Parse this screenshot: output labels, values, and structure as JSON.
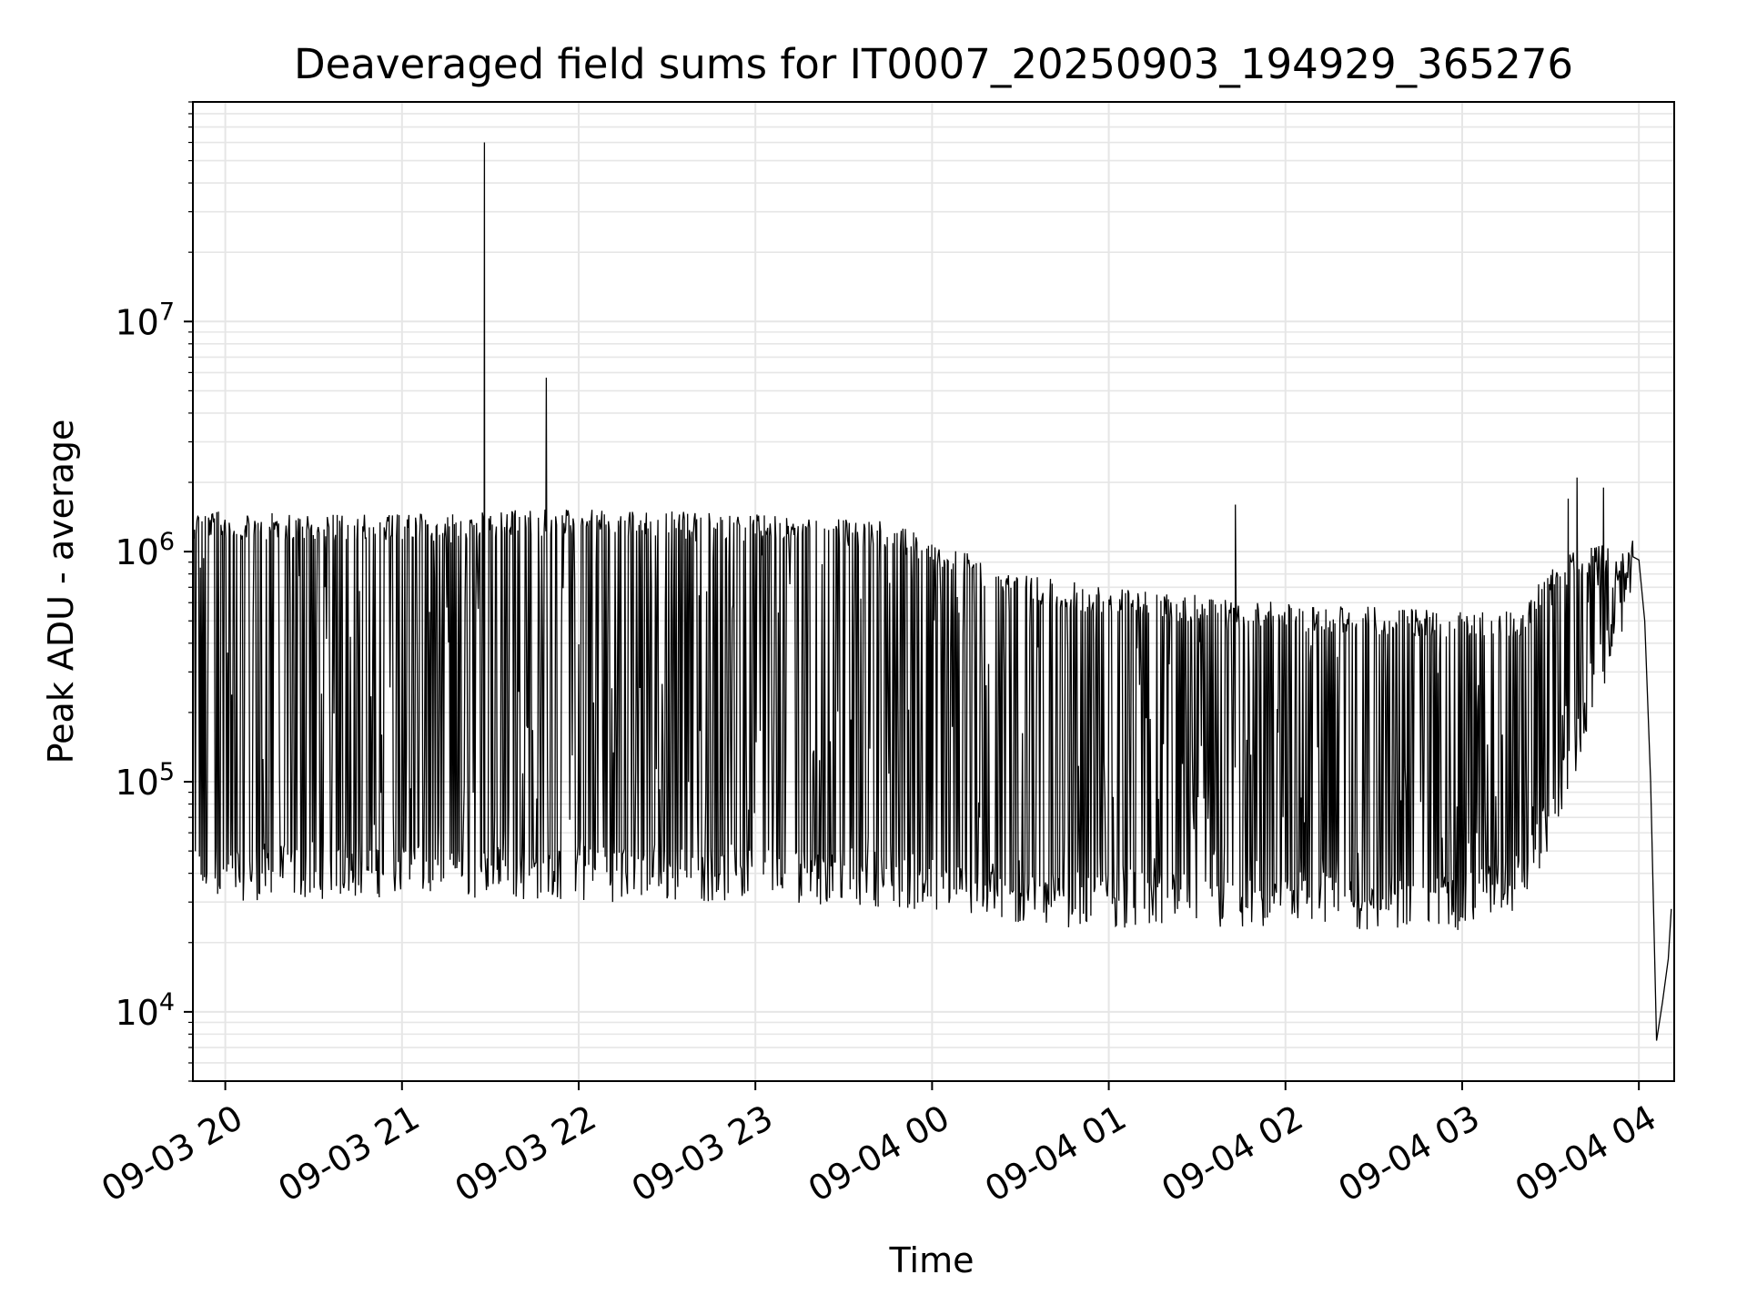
{
  "chart_data": {
    "type": "line",
    "title": "Deaveraged field sums for IT0007_20250903_194929_365276",
    "xlabel": "Time",
    "ylabel": "Peak ADU - average",
    "yscale": "log",
    "ylim": [
      5000,
      90000000
    ],
    "xlim": [
      "09-03 19:49",
      "09-04 04:12"
    ],
    "grid": true,
    "line_color": "#000000",
    "grid_color": "#e6e6e6",
    "x_ticks": [
      {
        "value": "09-03 20:00",
        "label": "09-03 20"
      },
      {
        "value": "09-03 21:00",
        "label": "09-03 21"
      },
      {
        "value": "09-03 22:00",
        "label": "09-03 22"
      },
      {
        "value": "09-03 23:00",
        "label": "09-03 23"
      },
      {
        "value": "09-04 00:00",
        "label": "09-04 00"
      },
      {
        "value": "09-04 01:00",
        "label": "09-04 01"
      },
      {
        "value": "09-04 02:00",
        "label": "09-04 02"
      },
      {
        "value": "09-04 03:00",
        "label": "09-04 03"
      },
      {
        "value": "09-04 04:00",
        "label": "09-04 04"
      }
    ],
    "y_ticks": [
      {
        "value": 10000,
        "base": "10",
        "exp": "4"
      },
      {
        "value": 100000,
        "base": "10",
        "exp": "5"
      },
      {
        "value": 1000000,
        "base": "10",
        "exp": "6"
      },
      {
        "value": 10000000,
        "base": "10",
        "exp": "7"
      }
    ],
    "series": [
      {
        "style": "high-frequency oscillation between a lower envelope and an upper envelope",
        "lower_envelope": [
          {
            "x": "09-03 19:49",
            "y": 40000
          },
          {
            "x": "09-03 21:00",
            "y": 42000
          },
          {
            "x": "09-03 22:00",
            "y": 40000
          },
          {
            "x": "09-03 23:00",
            "y": 40000
          },
          {
            "x": "09-03 23:45",
            "y": 38000
          },
          {
            "x": "09-04 00:30",
            "y": 31000
          },
          {
            "x": "09-04 01:00",
            "y": 31000
          },
          {
            "x": "09-04 02:00",
            "y": 29000
          },
          {
            "x": "09-04 03:00",
            "y": 30000
          },
          {
            "x": "09-04 03:20",
            "y": 37000
          },
          {
            "x": "09-04 03:30",
            "y": 70000
          },
          {
            "x": "09-04 03:45",
            "y": 250000
          },
          {
            "x": "09-04 03:58",
            "y": 850000
          }
        ],
        "upper_envelope": [
          {
            "x": "09-03 19:49",
            "y": 1500000
          },
          {
            "x": "09-03 21:00",
            "y": 1450000
          },
          {
            "x": "09-03 22:00",
            "y": 1550000
          },
          {
            "x": "09-03 23:00",
            "y": 1450000
          },
          {
            "x": "09-03 23:45",
            "y": 1350000
          },
          {
            "x": "09-04 00:30",
            "y": 800000
          },
          {
            "x": "09-04 01:00",
            "y": 700000
          },
          {
            "x": "09-04 02:00",
            "y": 600000
          },
          {
            "x": "09-04 03:00",
            "y": 550000
          },
          {
            "x": "09-04 03:20",
            "y": 550000
          },
          {
            "x": "09-04 03:30",
            "y": 900000
          },
          {
            "x": "09-04 03:45",
            "y": 1100000
          },
          {
            "x": "09-04 03:58",
            "y": 1000000
          }
        ],
        "spikes": [
          {
            "x": "09-03 21:28",
            "y": 60000000
          },
          {
            "x": "09-03 21:49",
            "y": 5700000
          },
          {
            "x": "09-04 03:36",
            "y": 1700000
          },
          {
            "x": "09-04 03:39",
            "y": 2100000
          },
          {
            "x": "09-04 03:48",
            "y": 1900000
          },
          {
            "x": "09-04 01:43",
            "y": 1600000
          }
        ],
        "tail": [
          {
            "x": "09-04 03:58",
            "y": 950000
          },
          {
            "x": "09-04 04:00",
            "y": 920000
          },
          {
            "x": "09-04 04:02",
            "y": 500000
          },
          {
            "x": "09-04 04:04",
            "y": 100000
          },
          {
            "x": "09-04 04:05",
            "y": 28000
          },
          {
            "x": "09-04 04:06",
            "y": 7500
          },
          {
            "x": "09-04 04:08",
            "y": 11000
          },
          {
            "x": "09-04 04:10",
            "y": 17000
          },
          {
            "x": "09-04 04:11",
            "y": 28000
          }
        ]
      }
    ]
  }
}
